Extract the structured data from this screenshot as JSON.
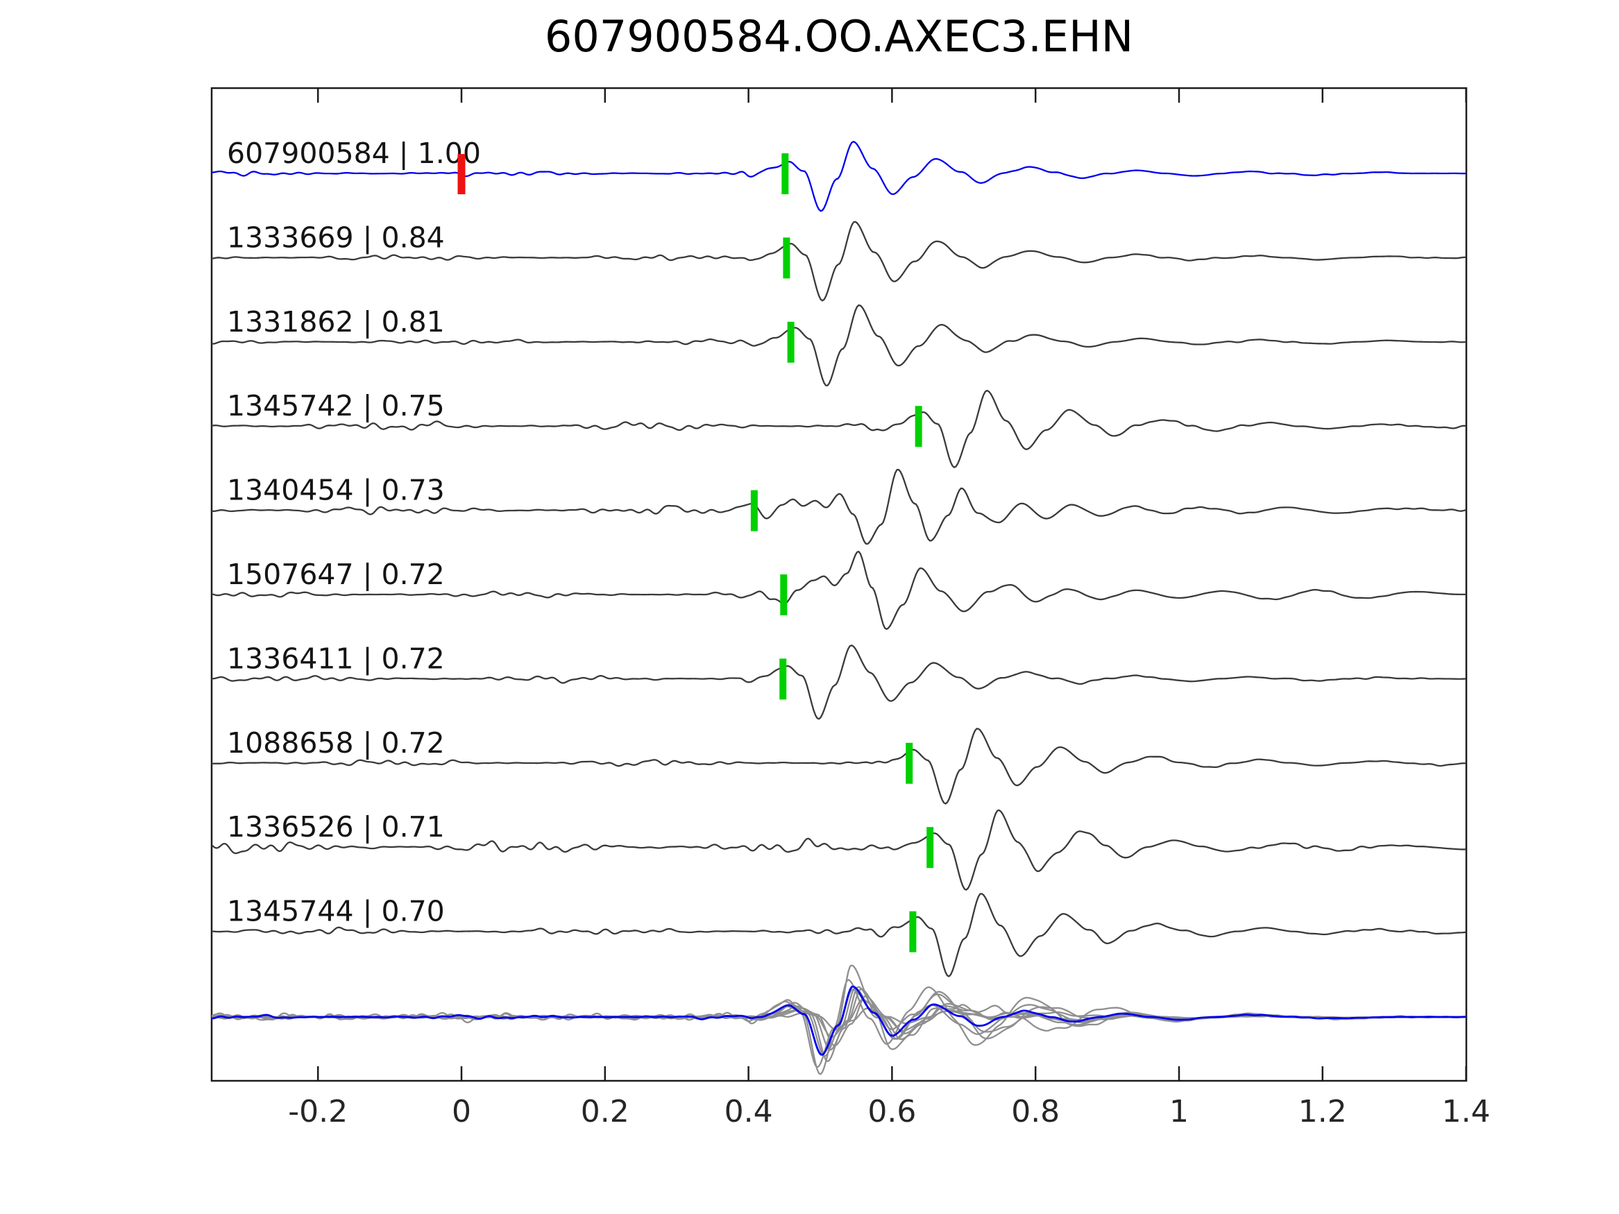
{
  "title": "607900584.OO.AXEC3.EHN",
  "colors": {
    "template_blue": "#0000f0",
    "trace_gray": "#3a3a3a",
    "composite_gray": "#8f8f8f",
    "pick_green": "#00d000",
    "ref_red": "#ee1111",
    "axis": "#1c1c1c",
    "label_text": "#141414",
    "tick_text": "#262626"
  },
  "axis": {
    "xticks": [
      {
        "value": -0.2,
        "label": "-0.2"
      },
      {
        "value": 0,
        "label": "0"
      },
      {
        "value": 0.2,
        "label": "0.2"
      },
      {
        "value": 0.4,
        "label": "0.4"
      },
      {
        "value": 0.6,
        "label": "0.6"
      },
      {
        "value": 0.8,
        "label": "0.8"
      },
      {
        "value": 1,
        "label": "1"
      },
      {
        "value": 1.2,
        "label": "1.2"
      },
      {
        "value": 1.4,
        "label": "1.4"
      }
    ]
  },
  "chart_data": {
    "type": "line",
    "subtype": "seismic-waveform-gather",
    "title": "607900584.OO.AXEC3.EHN",
    "xlim": [
      -0.35,
      1.4
    ],
    "x_units": "seconds (relative)",
    "reference_marker": {
      "trace": "607900584",
      "time": 0.0,
      "color_key": "ref_red"
    },
    "wavelet_rel": [
      [
        -0.06,
        0
      ],
      [
        -0.05,
        -4
      ],
      [
        -0.022,
        6
      ],
      [
        0.006,
        20
      ],
      [
        0.026,
        4
      ],
      [
        0.05,
        -62
      ],
      [
        0.072,
        -10
      ],
      [
        0.095,
        52
      ],
      [
        0.122,
        8
      ],
      [
        0.15,
        -34
      ],
      [
        0.178,
        -6
      ],
      [
        0.21,
        24
      ],
      [
        0.245,
        2
      ],
      [
        0.272,
        -15
      ],
      [
        0.305,
        1
      ],
      [
        0.34,
        10
      ],
      [
        0.378,
        1
      ],
      [
        0.415,
        -7
      ],
      [
        0.452,
        0
      ],
      [
        0.49,
        5
      ],
      [
        0.53,
        0
      ],
      [
        0.57,
        -4
      ],
      [
        0.61,
        0
      ],
      [
        0.65,
        3
      ],
      [
        0.695,
        0
      ],
      [
        0.74,
        -3
      ],
      [
        0.79,
        0
      ],
      [
        0.83,
        2
      ],
      [
        0.88,
        0
      ]
    ],
    "traces": [
      {
        "id": "607900584",
        "corr": "1.00",
        "label": "607900584 | 1.00",
        "color_key": "template_blue",
        "pick": 0.451,
        "ref_time": 0.0,
        "scale": 0.88,
        "seed": 11,
        "noise_amp": 3.5
      },
      {
        "id": "1333669",
        "corr": "0.84",
        "label": "1333669 | 0.84",
        "color_key": "trace_gray",
        "pick": 0.453,
        "scale": 1.0,
        "seed": 22,
        "noise_amp": 4
      },
      {
        "id": "1331862",
        "corr": "0.81",
        "label": "1331862 | 0.81",
        "color_key": "trace_gray",
        "pick": 0.459,
        "scale": 1.02,
        "seed": 33,
        "noise_amp": 3.5
      },
      {
        "id": "1345742",
        "corr": "0.75",
        "label": "1345742 | 0.75",
        "color_key": "trace_gray",
        "pick": 0.637,
        "scale": 0.98,
        "seed": 44,
        "noise_amp": 6
      },
      {
        "id": "1340454",
        "corr": "0.73",
        "label": "1340454 | 0.73",
        "color_key": "trace_gray",
        "pick": 0.408,
        "seed": 55,
        "noise_amp": 6,
        "keypoints": [
          [
            0.37,
            0
          ],
          [
            0.385,
            4
          ],
          [
            0.405,
            10
          ],
          [
            0.425,
            -12
          ],
          [
            0.447,
            8
          ],
          [
            0.462,
            16
          ],
          [
            0.476,
            6
          ],
          [
            0.493,
            14
          ],
          [
            0.508,
            4
          ],
          [
            0.527,
            24
          ],
          [
            0.546,
            -6
          ],
          [
            0.565,
            -50
          ],
          [
            0.585,
            -20
          ],
          [
            0.608,
            58
          ],
          [
            0.632,
            10
          ],
          [
            0.654,
            -44
          ],
          [
            0.678,
            -8
          ],
          [
            0.697,
            30
          ],
          [
            0.72,
            -4
          ],
          [
            0.748,
            -18
          ],
          [
            0.78,
            10
          ],
          [
            0.815,
            -12
          ],
          [
            0.85,
            8
          ],
          [
            0.89,
            -8
          ],
          [
            0.935,
            6
          ],
          [
            0.98,
            -5
          ],
          [
            1.03,
            5
          ],
          [
            1.09,
            -4
          ],
          [
            1.15,
            4
          ],
          [
            1.22,
            -4
          ],
          [
            1.3,
            3
          ],
          [
            1.39,
            0
          ]
        ]
      },
      {
        "id": "1507647",
        "corr": "0.72",
        "label": "1507647 | 0.72",
        "color_key": "trace_gray",
        "pick": 0.449,
        "seed": 66,
        "noise_amp": 4,
        "keypoints": [
          [
            0.4,
            0
          ],
          [
            0.415,
            4
          ],
          [
            0.432,
            -6
          ],
          [
            0.449,
            -14
          ],
          [
            0.468,
            6
          ],
          [
            0.49,
            20
          ],
          [
            0.505,
            26
          ],
          [
            0.52,
            14
          ],
          [
            0.537,
            30
          ],
          [
            0.553,
            62
          ],
          [
            0.572,
            10
          ],
          [
            0.592,
            -50
          ],
          [
            0.615,
            -15
          ],
          [
            0.64,
            38
          ],
          [
            0.668,
            5
          ],
          [
            0.7,
            -24
          ],
          [
            0.735,
            4
          ],
          [
            0.765,
            14
          ],
          [
            0.8,
            -10
          ],
          [
            0.845,
            8
          ],
          [
            0.89,
            -7
          ],
          [
            0.94,
            6
          ],
          [
            1.0,
            -5
          ],
          [
            1.06,
            5
          ],
          [
            1.13,
            -7
          ],
          [
            1.19,
            6
          ],
          [
            1.26,
            -5
          ],
          [
            1.33,
            4
          ],
          [
            1.395,
            0
          ]
        ]
      },
      {
        "id": "1336411",
        "corr": "0.72",
        "label": "1336411 | 0.72",
        "color_key": "trace_gray",
        "pick": 0.448,
        "scale": 0.95,
        "seed": 77,
        "noise_amp": 4.5
      },
      {
        "id": "1088658",
        "corr": "0.72",
        "label": "1088658 | 0.72",
        "color_key": "trace_gray",
        "pick": 0.624,
        "scale": 0.95,
        "seed": 88,
        "noise_amp": 4.5
      },
      {
        "id": "1336526",
        "corr": "0.71",
        "label": "1336526 | 0.71",
        "color_key": "trace_gray",
        "pick": 0.653,
        "scale": 1.0,
        "seed": 99,
        "noise_amp": 9
      },
      {
        "id": "1345744",
        "corr": "0.70",
        "label": "1345744 | 0.70",
        "color_key": "trace_gray",
        "pick": 0.629,
        "scale": 1.05,
        "seed": 110,
        "noise_amp": 5
      }
    ],
    "composite": {
      "pick": 0.45,
      "template_rel": [
        [
          -0.055,
          0
        ],
        [
          -0.044,
          -3
        ],
        [
          -0.02,
          5
        ],
        [
          0.006,
          17
        ],
        [
          0.028,
          4
        ],
        [
          0.052,
          -55
        ],
        [
          0.075,
          -12
        ],
        [
          0.095,
          44
        ],
        [
          0.125,
          6
        ],
        [
          0.15,
          -27
        ],
        [
          0.18,
          -4
        ],
        [
          0.208,
          18
        ],
        [
          0.245,
          1
        ],
        [
          0.27,
          -13
        ],
        [
          0.305,
          0
        ],
        [
          0.335,
          9
        ],
        [
          0.372,
          0
        ],
        [
          0.4,
          -7
        ],
        [
          0.44,
          0
        ],
        [
          0.47,
          5
        ],
        [
          0.51,
          0
        ],
        [
          0.55,
          -4
        ],
        [
          0.6,
          0
        ],
        [
          0.65,
          3
        ],
        [
          0.71,
          0
        ],
        [
          0.77,
          -2
        ],
        [
          0.85,
          0
        ],
        [
          0.95,
          0
        ]
      ],
      "blue": {
        "scale": 1.0,
        "shift": 0.0,
        "warp_amp": 0,
        "warp_period": 0.2,
        "seed": 320,
        "noise_amp": 3
      },
      "grays": [
        {
          "scale": 1.35,
          "shift": -0.006,
          "warp_amp": 24,
          "warp_period": 0.165,
          "seed": 301,
          "noise_amp": 5
        },
        {
          "scale": 1.05,
          "shift": 0.004,
          "warp_amp": 15,
          "warp_period": 0.19,
          "seed": 302,
          "noise_amp": 4
        },
        {
          "scale": 0.9,
          "shift": 0.012,
          "warp_amp": 11,
          "warp_period": 0.22,
          "seed": 303,
          "noise_amp": 4
        },
        {
          "scale": 1.5,
          "shift": -0.002,
          "warp_amp": 27,
          "warp_period": 0.175,
          "seed": 304,
          "noise_amp": 6
        },
        {
          "scale": 0.75,
          "shift": 0.018,
          "warp_amp": 8,
          "warp_period": 0.25,
          "seed": 305,
          "noise_amp": 3.5
        },
        {
          "scale": 1.15,
          "shift": 0.008,
          "warp_amp": 19,
          "warp_period": 0.185,
          "seed": 306,
          "noise_amp": 5
        },
        {
          "scale": 0.95,
          "shift": 0.0,
          "warp_amp": 13,
          "warp_period": 0.205,
          "seed": 307,
          "noise_amp": 4
        },
        {
          "scale": 0.55,
          "shift": 0.014,
          "warp_amp": 7,
          "warp_period": 0.235,
          "seed": 308,
          "noise_amp": 3.5
        },
        {
          "scale": 0.32,
          "shift": 0.02,
          "warp_amp": 4,
          "warp_period": 0.3,
          "seed": 309,
          "noise_amp": 3
        }
      ]
    }
  }
}
